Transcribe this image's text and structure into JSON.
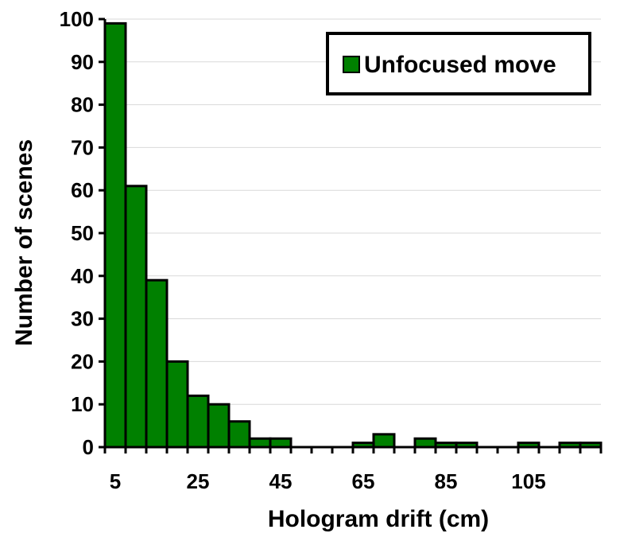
{
  "chart_data": {
    "type": "bar",
    "xlabel": "Hologram drift (cm)",
    "ylabel": "Number of scenes",
    "ylim": [
      0,
      100
    ],
    "yticks": [
      0,
      10,
      20,
      30,
      40,
      50,
      60,
      70,
      80,
      90,
      100
    ],
    "xtick_labels": [
      "5",
      "25",
      "45",
      "65",
      "85",
      "105"
    ],
    "grid": "horizontal",
    "legend_position": "top-right",
    "colors": {
      "bar": "#008000",
      "edge": "#000000"
    },
    "series": [
      {
        "name": "Unfocused move",
        "categories": [
          5,
          10,
          15,
          20,
          25,
          30,
          35,
          40,
          45,
          50,
          55,
          60,
          65,
          70,
          75,
          80,
          85,
          90,
          95,
          100,
          105,
          110,
          115,
          120
        ],
        "values": [
          99,
          61,
          39,
          20,
          12,
          10,
          6,
          2,
          2,
          0,
          0,
          0,
          1,
          3,
          0,
          2,
          1,
          1,
          0,
          0,
          1,
          0,
          1,
          1
        ]
      }
    ]
  }
}
